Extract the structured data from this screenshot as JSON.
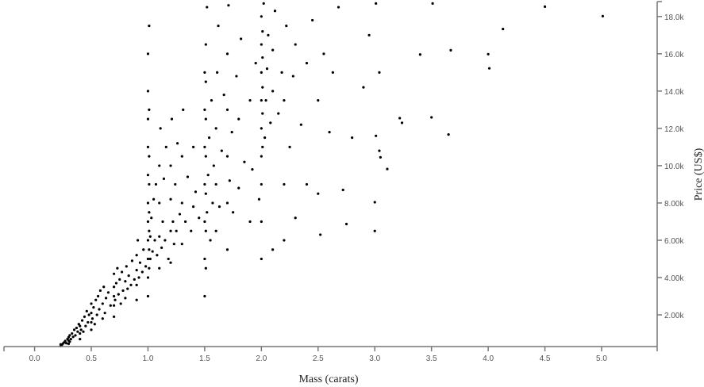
{
  "chart_data": {
    "type": "scatter",
    "title": "",
    "xlabel": "Mass (carats)",
    "ylabel": "Price (US$)",
    "xlim": [
      -0.27,
      5.49
    ],
    "ylim": [
      300,
      18800
    ],
    "x_ticks": [
      0.0,
      0.5,
      1.0,
      1.5,
      2.0,
      2.5,
      3.0,
      3.5,
      4.0,
      4.5,
      5.0
    ],
    "x_tick_labels": [
      "0.0",
      "0.5",
      "1.0",
      "1.5",
      "2.0",
      "2.5",
      "3.0",
      "3.5",
      "4.0",
      "4.5",
      "5.0"
    ],
    "y_ticks": [
      2000,
      4000,
      6000,
      8000,
      10000,
      12000,
      14000,
      16000,
      18000
    ],
    "y_tick_labels": [
      "2.00k",
      "4.00k",
      "6.00k",
      "8.00k",
      "10.0k",
      "12.0k",
      "14.0k",
      "16.0k",
      "18.0k"
    ],
    "y_axis_position": "right",
    "grid": false,
    "marker_color": "#000000",
    "axis_color": "#777777",
    "points": [
      [
        0.23,
        330
      ],
      [
        0.23,
        420
      ],
      [
        0.24,
        380
      ],
      [
        0.25,
        460
      ],
      [
        0.26,
        520
      ],
      [
        0.27,
        600
      ],
      [
        0.28,
        480
      ],
      [
        0.29,
        700
      ],
      [
        0.3,
        450
      ],
      [
        0.3,
        620
      ],
      [
        0.3,
        800
      ],
      [
        0.31,
        560
      ],
      [
        0.31,
        900
      ],
      [
        0.32,
        700
      ],
      [
        0.33,
        1000
      ],
      [
        0.34,
        820
      ],
      [
        0.35,
        1200
      ],
      [
        0.36,
        900
      ],
      [
        0.37,
        1300
      ],
      [
        0.38,
        1100
      ],
      [
        0.39,
        1500
      ],
      [
        0.4,
        700
      ],
      [
        0.4,
        1000
      ],
      [
        0.4,
        1400
      ],
      [
        0.41,
        1200
      ],
      [
        0.42,
        1700
      ],
      [
        0.43,
        1100
      ],
      [
        0.44,
        1900
      ],
      [
        0.45,
        1400
      ],
      [
        0.46,
        2200
      ],
      [
        0.47,
        1600
      ],
      [
        0.48,
        2000
      ],
      [
        0.5,
        1200
      ],
      [
        0.5,
        1600
      ],
      [
        0.5,
        2100
      ],
      [
        0.5,
        2600
      ],
      [
        0.51,
        1800
      ],
      [
        0.52,
        2400
      ],
      [
        0.53,
        1500
      ],
      [
        0.54,
        2800
      ],
      [
        0.55,
        2000
      ],
      [
        0.56,
        3000
      ],
      [
        0.57,
        2300
      ],
      [
        0.58,
        3300
      ],
      [
        0.6,
        1800
      ],
      [
        0.6,
        2600
      ],
      [
        0.61,
        3500
      ],
      [
        0.62,
        2100
      ],
      [
        0.63,
        2900
      ],
      [
        0.65,
        3200
      ],
      [
        0.67,
        2500
      ],
      [
        0.7,
        1900
      ],
      [
        0.7,
        2500
      ],
      [
        0.7,
        3000
      ],
      [
        0.7,
        3500
      ],
      [
        0.7,
        4200
      ],
      [
        0.71,
        2800
      ],
      [
        0.72,
        3700
      ],
      [
        0.73,
        4500
      ],
      [
        0.74,
        3100
      ],
      [
        0.75,
        3900
      ],
      [
        0.76,
        2600
      ],
      [
        0.77,
        4300
      ],
      [
        0.78,
        3300
      ],
      [
        0.8,
        2900
      ],
      [
        0.8,
        3800
      ],
      [
        0.81,
        4600
      ],
      [
        0.82,
        3400
      ],
      [
        0.83,
        4100
      ],
      [
        0.85,
        3600
      ],
      [
        0.86,
        4900
      ],
      [
        0.88,
        3900
      ],
      [
        0.9,
        2800
      ],
      [
        0.9,
        3600
      ],
      [
        0.9,
        4400
      ],
      [
        0.9,
        5200
      ],
      [
        0.91,
        6000
      ],
      [
        0.92,
        4000
      ],
      [
        0.93,
        4800
      ],
      [
        0.95,
        4300
      ],
      [
        0.96,
        5500
      ],
      [
        0.98,
        4600
      ],
      [
        1.0,
        3000
      ],
      [
        1.0,
        4000
      ],
      [
        1.0,
        5000
      ],
      [
        1.0,
        6000
      ],
      [
        1.0,
        7000
      ],
      [
        1.0,
        8000
      ],
      [
        1.0,
        9500
      ],
      [
        1.0,
        11000
      ],
      [
        1.0,
        12500
      ],
      [
        1.0,
        14000
      ],
      [
        1.0,
        16000
      ],
      [
        1.01,
        4500
      ],
      [
        1.01,
        5500
      ],
      [
        1.01,
        6500
      ],
      [
        1.01,
        7500
      ],
      [
        1.01,
        9000
      ],
      [
        1.01,
        10500
      ],
      [
        1.01,
        13000
      ],
      [
        1.01,
        17500
      ],
      [
        1.02,
        5000
      ],
      [
        1.02,
        6200
      ],
      [
        1.03,
        7200
      ],
      [
        1.04,
        5400
      ],
      [
        1.05,
        8200
      ],
      [
        1.06,
        6000
      ],
      [
        1.07,
        9000
      ],
      [
        1.08,
        5200
      ],
      [
        1.1,
        4500
      ],
      [
        1.1,
        6200
      ],
      [
        1.1,
        8000
      ],
      [
        1.1,
        10000
      ],
      [
        1.11,
        12000
      ],
      [
        1.12,
        5600
      ],
      [
        1.13,
        7000
      ],
      [
        1.14,
        9300
      ],
      [
        1.15,
        6000
      ],
      [
        1.16,
        11000
      ],
      [
        1.18,
        5000
      ],
      [
        1.2,
        4800
      ],
      [
        1.2,
        6500
      ],
      [
        1.2,
        8200
      ],
      [
        1.2,
        10000
      ],
      [
        1.21,
        12500
      ],
      [
        1.22,
        7000
      ],
      [
        1.23,
        5800
      ],
      [
        1.24,
        9000
      ],
      [
        1.25,
        6500
      ],
      [
        1.26,
        11200
      ],
      [
        1.28,
        7400
      ],
      [
        1.3,
        5800
      ],
      [
        1.3,
        8000
      ],
      [
        1.3,
        10500
      ],
      [
        1.31,
        13000
      ],
      [
        1.33,
        7000
      ],
      [
        1.35,
        9400
      ],
      [
        1.38,
        6500
      ],
      [
        1.4,
        7800
      ],
      [
        1.4,
        11000
      ],
      [
        1.42,
        8600
      ],
      [
        1.45,
        7200
      ],
      [
        1.5,
        3000
      ],
      [
        1.5,
        5000
      ],
      [
        1.5,
        7000
      ],
      [
        1.5,
        9000
      ],
      [
        1.5,
        11000
      ],
      [
        1.5,
        13000
      ],
      [
        1.5,
        15000
      ],
      [
        1.51,
        4500
      ],
      [
        1.51,
        6500
      ],
      [
        1.51,
        8500
      ],
      [
        1.51,
        10500
      ],
      [
        1.51,
        12500
      ],
      [
        1.51,
        14500
      ],
      [
        1.51,
        16500
      ],
      [
        1.52,
        18500
      ],
      [
        1.52,
        7500
      ],
      [
        1.53,
        9500
      ],
      [
        1.54,
        11500
      ],
      [
        1.55,
        6000
      ],
      [
        1.56,
        13500
      ],
      [
        1.57,
        8000
      ],
      [
        1.58,
        10000
      ],
      [
        1.6,
        6500
      ],
      [
        1.6,
        9000
      ],
      [
        1.6,
        12000
      ],
      [
        1.61,
        15000
      ],
      [
        1.62,
        17500
      ],
      [
        1.63,
        7800
      ],
      [
        1.65,
        10800
      ],
      [
        1.67,
        13800
      ],
      [
        1.7,
        5500
      ],
      [
        1.7,
        8000
      ],
      [
        1.7,
        10500
      ],
      [
        1.7,
        13000
      ],
      [
        1.7,
        16000
      ],
      [
        1.71,
        18600
      ],
      [
        1.72,
        9200
      ],
      [
        1.74,
        11800
      ],
      [
        1.75,
        7500
      ],
      [
        1.78,
        14800
      ],
      [
        1.8,
        8800
      ],
      [
        1.8,
        12500
      ],
      [
        1.82,
        16800
      ],
      [
        1.85,
        10200
      ],
      [
        1.9,
        7000
      ],
      [
        1.9,
        13500
      ],
      [
        1.92,
        9800
      ],
      [
        1.95,
        15500
      ],
      [
        1.98,
        8200
      ],
      [
        2.0,
        5000
      ],
      [
        2.0,
        7000
      ],
      [
        2.0,
        9000
      ],
      [
        2.0,
        10500
      ],
      [
        2.0,
        12000
      ],
      [
        2.0,
        13500
      ],
      [
        2.0,
        15000
      ],
      [
        2.0,
        16500
      ],
      [
        2.0,
        18000
      ],
      [
        2.01,
        11000
      ],
      [
        2.01,
        12800
      ],
      [
        2.01,
        14200
      ],
      [
        2.01,
        15800
      ],
      [
        2.01,
        17200
      ],
      [
        2.02,
        18700
      ],
      [
        2.03,
        11500
      ],
      [
        2.04,
        13500
      ],
      [
        2.05,
        15200
      ],
      [
        2.06,
        17000
      ],
      [
        2.08,
        12300
      ],
      [
        2.1,
        5500
      ],
      [
        2.1,
        14000
      ],
      [
        2.1,
        16200
      ],
      [
        2.12,
        18300
      ],
      [
        2.15,
        12800
      ],
      [
        2.18,
        15000
      ],
      [
        2.2,
        6000
      ],
      [
        2.2,
        9000
      ],
      [
        2.2,
        13500
      ],
      [
        2.22,
        17500
      ],
      [
        2.25,
        11000
      ],
      [
        2.28,
        14800
      ],
      [
        2.3,
        7200
      ],
      [
        2.3,
        16500
      ],
      [
        2.35,
        12200
      ],
      [
        2.4,
        15500
      ],
      [
        2.4,
        9000
      ],
      [
        2.45,
        17800
      ],
      [
        2.5,
        13500
      ],
      [
        2.5,
        8500
      ],
      [
        2.52,
        6300
      ],
      [
        2.55,
        16000
      ],
      [
        2.6,
        11800
      ],
      [
        2.63,
        15000
      ],
      [
        2.68,
        18500
      ],
      [
        2.72,
        8700
      ],
      [
        2.75,
        6870
      ],
      [
        2.8,
        11500
      ],
      [
        2.9,
        14200
      ],
      [
        2.95,
        17000
      ],
      [
        3.0,
        6500
      ],
      [
        3.0,
        8040
      ],
      [
        3.01,
        11600
      ],
      [
        3.01,
        18700
      ],
      [
        3.04,
        10800
      ],
      [
        3.05,
        10450
      ],
      [
        3.04,
        15000
      ],
      [
        3.11,
        9820
      ],
      [
        3.22,
        12550
      ],
      [
        3.24,
        12300
      ],
      [
        3.4,
        15960
      ],
      [
        3.5,
        12590
      ],
      [
        3.51,
        18700
      ],
      [
        3.65,
        11670
      ],
      [
        3.67,
        16190
      ],
      [
        4.0,
        15980
      ],
      [
        4.01,
        15220
      ],
      [
        4.13,
        17330
      ],
      [
        4.5,
        18530
      ],
      [
        5.01,
        18020
      ]
    ]
  }
}
